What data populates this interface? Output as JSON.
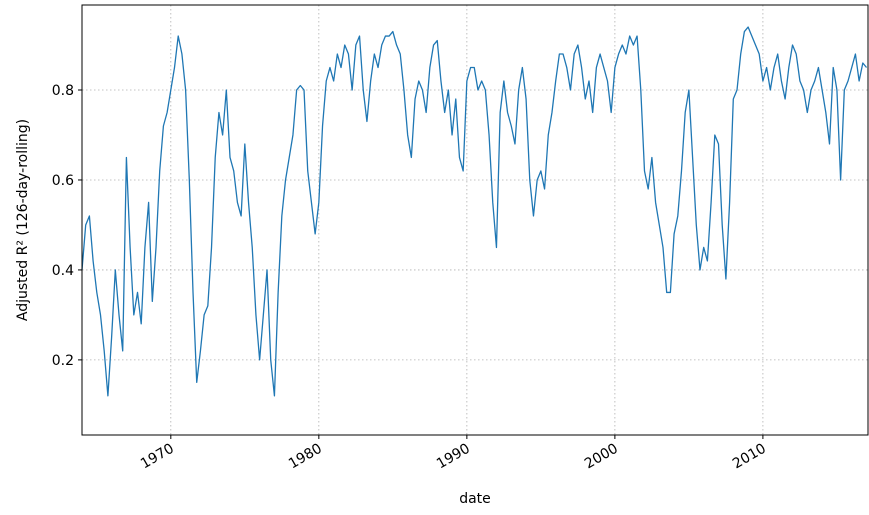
{
  "chart_data": {
    "type": "line",
    "xlabel": "date",
    "ylabel": "Adjusted R² (126-day-rolling)",
    "xlim": [
      1964.0,
      2017.1
    ],
    "ylim": [
      0.033,
      0.989
    ],
    "xticks": [
      1970,
      1980,
      1990,
      2000,
      2010
    ],
    "yticks": [
      0.2,
      0.4,
      0.6,
      0.8
    ],
    "grid": true,
    "series": [
      {
        "color": "#1f77b4",
        "x": [
          1964,
          1964.25,
          1964.5,
          1964.75,
          1965,
          1965.25,
          1965.5,
          1965.75,
          1966,
          1966.25,
          1966.5,
          1966.75,
          1967,
          1967.25,
          1967.5,
          1967.75,
          1968,
          1968.25,
          1968.5,
          1968.75,
          1969,
          1969.25,
          1969.5,
          1969.75,
          1970,
          1970.25,
          1970.5,
          1970.75,
          1971,
          1971.25,
          1971.5,
          1971.75,
          1972,
          1972.25,
          1972.5,
          1972.75,
          1973,
          1973.25,
          1973.5,
          1973.75,
          1974,
          1974.25,
          1974.5,
          1974.75,
          1975,
          1975.25,
          1975.5,
          1975.75,
          1976,
          1976.25,
          1976.5,
          1976.75,
          1977,
          1977.25,
          1977.5,
          1977.75,
          1978,
          1978.25,
          1978.5,
          1978.75,
          1979,
          1979.25,
          1979.5,
          1979.75,
          1980,
          1980.25,
          1980.5,
          1980.75,
          1981,
          1981.25,
          1981.5,
          1981.75,
          1982,
          1982.25,
          1982.5,
          1982.75,
          1983,
          1983.25,
          1983.5,
          1983.75,
          1984,
          1984.25,
          1984.5,
          1984.75,
          1985,
          1985.25,
          1985.5,
          1985.75,
          1986,
          1986.25,
          1986.5,
          1986.75,
          1987,
          1987.25,
          1987.5,
          1987.75,
          1988,
          1988.25,
          1988.5,
          1988.75,
          1989,
          1989.25,
          1989.5,
          1989.75,
          1990,
          1990.25,
          1990.5,
          1990.75,
          1991,
          1991.25,
          1991.5,
          1991.75,
          1992,
          1992.25,
          1992.5,
          1992.75,
          1993,
          1993.25,
          1993.5,
          1993.75,
          1994,
          1994.25,
          1994.5,
          1994.75,
          1995,
          1995.25,
          1995.5,
          1995.75,
          1996,
          1996.25,
          1996.5,
          1996.75,
          1997,
          1997.25,
          1997.5,
          1997.75,
          1998,
          1998.25,
          1998.5,
          1998.75,
          1999,
          1999.25,
          1999.5,
          1999.75,
          2000,
          2000.25,
          2000.5,
          2000.75,
          2001,
          2001.25,
          2001.5,
          2001.75,
          2002,
          2002.25,
          2002.5,
          2002.75,
          2003,
          2003.25,
          2003.5,
          2003.75,
          2004,
          2004.25,
          2004.5,
          2004.75,
          2005,
          2005.25,
          2005.5,
          2005.75,
          2006,
          2006.25,
          2006.5,
          2006.75,
          2007,
          2007.25,
          2007.5,
          2007.75,
          2008,
          2008.25,
          2008.5,
          2008.75,
          2009,
          2009.25,
          2009.5,
          2009.75,
          2010,
          2010.25,
          2010.5,
          2010.75,
          2011,
          2011.25,
          2011.5,
          2011.75,
          2012,
          2012.25,
          2012.5,
          2012.75,
          2013,
          2013.25,
          2013.5,
          2013.75,
          2014,
          2014.25,
          2014.5,
          2014.75,
          2015,
          2015.25,
          2015.5,
          2015.75,
          2016,
          2016.25,
          2016.5,
          2016.75,
          2017
        ],
        "values": [
          0.4,
          0.5,
          0.52,
          0.42,
          0.35,
          0.3,
          0.22,
          0.12,
          0.25,
          0.4,
          0.3,
          0.22,
          0.65,
          0.45,
          0.3,
          0.35,
          0.28,
          0.45,
          0.55,
          0.33,
          0.45,
          0.62,
          0.72,
          0.75,
          0.8,
          0.85,
          0.92,
          0.88,
          0.8,
          0.6,
          0.35,
          0.15,
          0.22,
          0.3,
          0.32,
          0.45,
          0.65,
          0.75,
          0.7,
          0.8,
          0.65,
          0.62,
          0.55,
          0.52,
          0.68,
          0.55,
          0.45,
          0.3,
          0.2,
          0.3,
          0.4,
          0.2,
          0.12,
          0.35,
          0.52,
          0.6,
          0.65,
          0.7,
          0.8,
          0.81,
          0.8,
          0.62,
          0.55,
          0.48,
          0.55,
          0.72,
          0.82,
          0.85,
          0.82,
          0.88,
          0.85,
          0.9,
          0.88,
          0.8,
          0.9,
          0.92,
          0.8,
          0.73,
          0.82,
          0.88,
          0.85,
          0.9,
          0.92,
          0.92,
          0.93,
          0.9,
          0.88,
          0.8,
          0.7,
          0.65,
          0.78,
          0.82,
          0.8,
          0.75,
          0.85,
          0.9,
          0.91,
          0.82,
          0.75,
          0.8,
          0.7,
          0.78,
          0.65,
          0.62,
          0.82,
          0.85,
          0.85,
          0.8,
          0.82,
          0.8,
          0.7,
          0.55,
          0.45,
          0.75,
          0.82,
          0.75,
          0.72,
          0.68,
          0.8,
          0.85,
          0.78,
          0.6,
          0.52,
          0.6,
          0.62,
          0.58,
          0.7,
          0.75,
          0.82,
          0.88,
          0.88,
          0.85,
          0.8,
          0.88,
          0.9,
          0.85,
          0.78,
          0.82,
          0.75,
          0.85,
          0.88,
          0.85,
          0.82,
          0.75,
          0.85,
          0.88,
          0.9,
          0.88,
          0.92,
          0.9,
          0.92,
          0.8,
          0.62,
          0.58,
          0.65,
          0.55,
          0.5,
          0.45,
          0.35,
          0.35,
          0.48,
          0.52,
          0.62,
          0.75,
          0.8,
          0.65,
          0.5,
          0.4,
          0.45,
          0.42,
          0.55,
          0.7,
          0.68,
          0.5,
          0.38,
          0.55,
          0.78,
          0.8,
          0.88,
          0.93,
          0.94,
          0.92,
          0.9,
          0.88,
          0.82,
          0.85,
          0.8,
          0.85,
          0.88,
          0.82,
          0.78,
          0.85,
          0.9,
          0.88,
          0.82,
          0.8,
          0.75,
          0.8,
          0.82,
          0.85,
          0.8,
          0.75,
          0.68,
          0.85,
          0.8,
          0.6,
          0.8,
          0.82,
          0.85,
          0.88,
          0.82,
          0.86,
          0.85
        ]
      }
    ]
  }
}
